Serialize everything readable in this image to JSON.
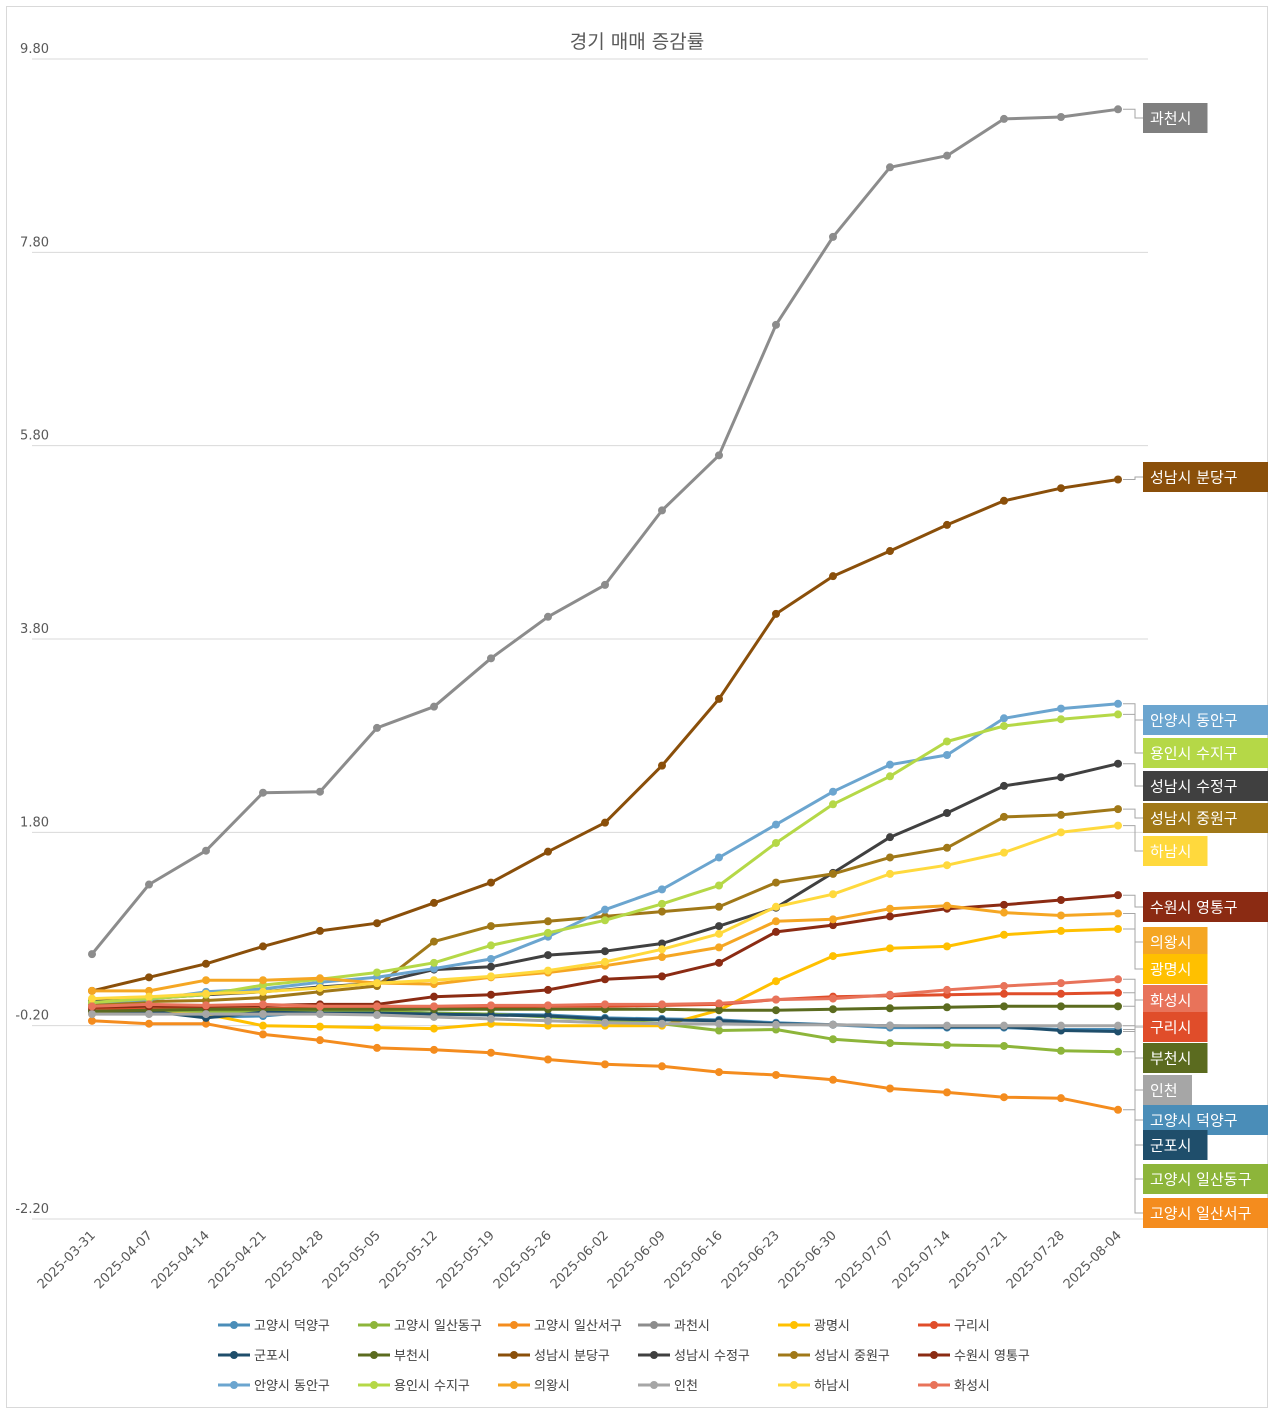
{
  "chart_data": {
    "type": "line",
    "title": "경기 매매 증감률",
    "xlabel": "",
    "ylabel": "",
    "ylim": [
      -2.2,
      9.8
    ],
    "yticks": [
      "9.80",
      "7.80",
      "5.80",
      "3.80",
      "1.80",
      "-0.20",
      "-2.20"
    ],
    "ytick_values": [
      9.8,
      7.8,
      5.8,
      3.8,
      1.8,
      -0.2,
      -2.2
    ],
    "grid": "horizontal",
    "legend_position": "bottom",
    "categories": [
      "2025-03-31",
      "2025-04-07",
      "2025-04-14",
      "2025-04-21",
      "2025-04-28",
      "2025-05-05",
      "2025-05-12",
      "2025-05-19",
      "2025-05-26",
      "2025-06-02",
      "2025-06-09",
      "2025-06-16",
      "2025-06-23",
      "2025-06-30",
      "2025-07-07",
      "2025-07-14",
      "2025-07-21",
      "2025-07-28",
      "2025-08-04"
    ],
    "series": [
      {
        "name": "고양시 덕양구",
        "color": "#4a8db8",
        "values": [
          -0.04,
          -0.04,
          -0.11,
          -0.1,
          -0.05,
          -0.05,
          -0.07,
          -0.08,
          -0.09,
          -0.12,
          -0.13,
          -0.14,
          -0.17,
          -0.19,
          -0.22,
          -0.22,
          -0.22,
          -0.24,
          -0.24
        ]
      },
      {
        "name": "고양시 일산동구",
        "color": "#8db53a",
        "values": [
          -0.04,
          -0.04,
          -0.05,
          -0.05,
          -0.05,
          -0.05,
          -0.07,
          -0.08,
          -0.11,
          -0.14,
          -0.18,
          -0.25,
          -0.24,
          -0.34,
          -0.38,
          -0.4,
          -0.41,
          -0.46,
          -0.47
        ]
      },
      {
        "name": "고양시 일산서구",
        "color": "#f48c1e",
        "values": [
          -0.15,
          -0.18,
          -0.18,
          -0.29,
          -0.35,
          -0.43,
          -0.45,
          -0.48,
          -0.55,
          -0.6,
          -0.62,
          -0.68,
          -0.71,
          -0.76,
          -0.85,
          -0.89,
          -0.94,
          -0.95,
          -1.07
        ]
      },
      {
        "name": "과천시",
        "color": "#8c8c8c",
        "values": [
          0.54,
          1.26,
          1.61,
          2.21,
          2.22,
          2.88,
          3.1,
          3.6,
          4.03,
          4.36,
          5.13,
          5.7,
          7.05,
          7.96,
          8.68,
          8.8,
          9.18,
          9.2,
          9.28
        ]
      },
      {
        "name": "광명시",
        "color": "#ffc000",
        "values": [
          -0.07,
          -0.07,
          -0.08,
          -0.2,
          -0.21,
          -0.22,
          -0.23,
          -0.18,
          -0.2,
          -0.2,
          -0.2,
          -0.04,
          0.26,
          0.52,
          0.6,
          0.62,
          0.74,
          0.78,
          0.8
        ]
      },
      {
        "name": "구리시",
        "color": "#e04d2a",
        "values": [
          -0.03,
          -0.03,
          -0.02,
          -0.02,
          -0.02,
          -0.02,
          -0.02,
          -0.01,
          0.0,
          0.0,
          0.01,
          0.02,
          0.07,
          0.1,
          0.11,
          0.12,
          0.13,
          0.13,
          0.14
        ]
      },
      {
        "name": "군포시",
        "color": "#1f4e6b",
        "values": [
          -0.05,
          -0.05,
          -0.12,
          -0.06,
          -0.07,
          -0.07,
          -0.08,
          -0.09,
          -0.1,
          -0.13,
          -0.14,
          -0.15,
          -0.18,
          -0.19,
          -0.2,
          -0.21,
          -0.21,
          -0.25,
          -0.26
        ]
      },
      {
        "name": "부천시",
        "color": "#5b6b1f",
        "values": [
          -0.05,
          -0.04,
          -0.03,
          -0.03,
          -0.03,
          -0.03,
          -0.03,
          -0.03,
          -0.03,
          -0.03,
          -0.03,
          -0.04,
          -0.04,
          -0.03,
          -0.02,
          -0.01,
          0.0,
          0.0,
          0.0
        ]
      },
      {
        "name": "성남시 분당구",
        "color": "#8a4f0a",
        "values": [
          0.16,
          0.3,
          0.44,
          0.62,
          0.78,
          0.86,
          1.07,
          1.28,
          1.6,
          1.9,
          2.49,
          3.18,
          4.06,
          4.45,
          4.71,
          4.98,
          5.23,
          5.36,
          5.45
        ]
      },
      {
        "name": "성남시 수정구",
        "color": "#404040",
        "values": [
          0.06,
          0.08,
          0.12,
          0.15,
          0.2,
          0.24,
          0.38,
          0.41,
          0.53,
          0.57,
          0.65,
          0.83,
          1.02,
          1.38,
          1.75,
          2.0,
          2.28,
          2.37,
          2.51
        ]
      },
      {
        "name": "성남시 중원구",
        "color": "#a07818",
        "values": [
          0.02,
          0.05,
          0.06,
          0.09,
          0.15,
          0.21,
          0.67,
          0.83,
          0.88,
          0.93,
          0.98,
          1.03,
          1.28,
          1.37,
          1.54,
          1.64,
          1.96,
          1.98,
          2.04
        ]
      },
      {
        "name": "수원시 영통구",
        "color": "#8b2b13",
        "values": [
          -0.01,
          0.0,
          0.0,
          0.01,
          0.02,
          0.02,
          0.1,
          0.12,
          0.17,
          0.28,
          0.31,
          0.45,
          0.77,
          0.84,
          0.93,
          1.01,
          1.05,
          1.1,
          1.15
        ]
      },
      {
        "name": "안양시 동안구",
        "color": "#6ba5cf",
        "values": [
          0.04,
          0.07,
          0.15,
          0.18,
          0.25,
          0.3,
          0.39,
          0.49,
          0.72,
          1.0,
          1.21,
          1.54,
          1.88,
          2.22,
          2.5,
          2.6,
          2.98,
          3.08,
          3.13
        ]
      },
      {
        "name": "용인시 수지구",
        "color": "#b5d847",
        "values": [
          0.04,
          0.08,
          0.12,
          0.22,
          0.28,
          0.35,
          0.45,
          0.63,
          0.76,
          0.89,
          1.06,
          1.25,
          1.69,
          2.09,
          2.38,
          2.74,
          2.9,
          2.97,
          3.02
        ]
      },
      {
        "name": "의왕시",
        "color": "#f5a623",
        "values": [
          0.16,
          0.16,
          0.27,
          0.27,
          0.29,
          0.24,
          0.23,
          0.3,
          0.35,
          0.42,
          0.51,
          0.61,
          0.88,
          0.9,
          1.01,
          1.04,
          0.97,
          0.94,
          0.96
        ]
      },
      {
        "name": "인천",
        "color": "#a6a6a6",
        "values": [
          -0.08,
          -0.08,
          -0.08,
          -0.08,
          -0.08,
          -0.09,
          -0.11,
          -0.13,
          -0.15,
          -0.17,
          -0.18,
          -0.18,
          -0.19,
          -0.19,
          -0.2,
          -0.2,
          -0.2,
          -0.2,
          -0.2
        ]
      },
      {
        "name": "하남시",
        "color": "#ffd93d",
        "values": [
          0.08,
          0.1,
          0.13,
          0.15,
          0.19,
          0.24,
          0.27,
          0.31,
          0.37,
          0.46,
          0.59,
          0.75,
          1.03,
          1.16,
          1.37,
          1.46,
          1.59,
          1.8,
          1.87
        ]
      },
      {
        "name": "화성시",
        "color": "#e8735a",
        "values": [
          0.0,
          0.02,
          0.01,
          0.02,
          0.0,
          0.0,
          0.0,
          0.01,
          0.01,
          0.02,
          0.02,
          0.03,
          0.07,
          0.08,
          0.12,
          0.17,
          0.21,
          0.24,
          0.28
        ]
      }
    ],
    "end_labels": [
      {
        "series": "과천시",
        "color": "#7f7f7f"
      },
      {
        "series": "성남시 분당구",
        "color": "#8a4f0a"
      },
      {
        "series": "안양시 동안구",
        "color": "#6ba5cf"
      },
      {
        "series": "용인시 수지구",
        "color": "#b5d847"
      },
      {
        "series": "성남시 수정구",
        "color": "#404040"
      },
      {
        "series": "성남시 중원구",
        "color": "#a07818"
      },
      {
        "series": "하남시",
        "color": "#ffd93d"
      },
      {
        "series": "수원시 영통구",
        "color": "#8b2b13"
      },
      {
        "series": "의왕시",
        "color": "#f5a623"
      },
      {
        "series": "광명시",
        "color": "#ffc000"
      },
      {
        "series": "화성시",
        "color": "#e8735a"
      },
      {
        "series": "구리시",
        "color": "#e04d2a"
      },
      {
        "series": "부천시",
        "color": "#5b6b1f"
      },
      {
        "series": "인천",
        "color": "#a6a6a6"
      },
      {
        "series": "고양시 덕양구",
        "color": "#4a8db8"
      },
      {
        "series": "군포시",
        "color": "#1f4e6b"
      },
      {
        "series": "고양시 일산동구",
        "color": "#8db53a"
      },
      {
        "series": "고양시 일산서구",
        "color": "#f48c1e"
      }
    ]
  }
}
